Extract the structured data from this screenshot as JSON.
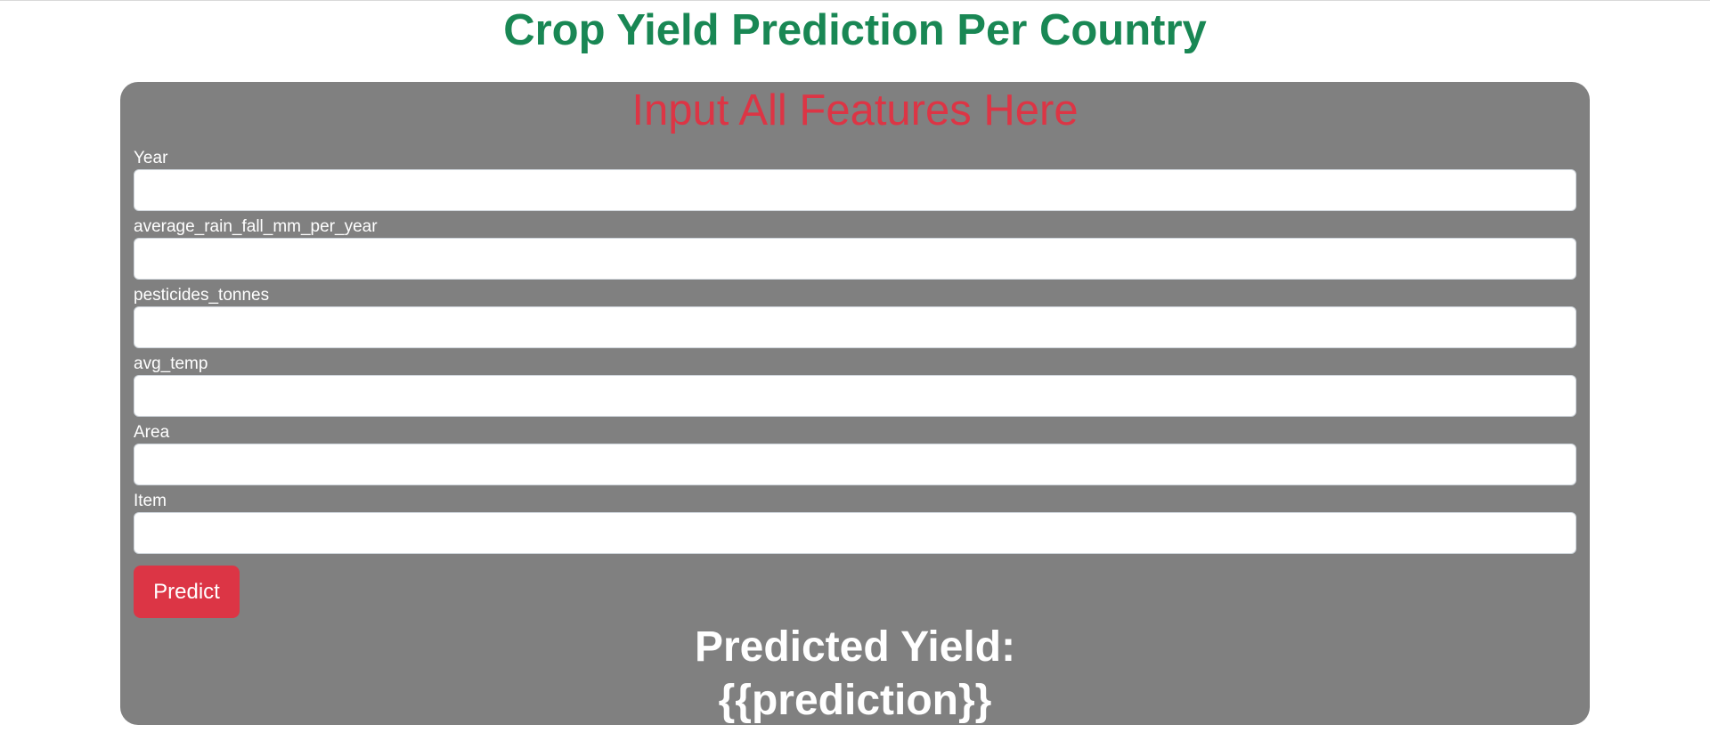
{
  "header": {
    "title": "Crop Yield Prediction Per Country"
  },
  "form": {
    "heading": "Input All Features Here",
    "fields": [
      {
        "label": "Year",
        "value": "",
        "placeholder": ""
      },
      {
        "label": "average_rain_fall_mm_per_year",
        "value": "",
        "placeholder": ""
      },
      {
        "label": "pesticides_tonnes",
        "value": "",
        "placeholder": ""
      },
      {
        "label": "avg_temp",
        "value": "",
        "placeholder": ""
      },
      {
        "label": "Area",
        "value": "",
        "placeholder": ""
      },
      {
        "label": "Item",
        "value": "",
        "placeholder": ""
      }
    ],
    "predict_label": "Predict"
  },
  "result": {
    "label": "Predicted Yield:",
    "value": "{{prediction}}"
  },
  "colors": {
    "title": "#198754",
    "heading": "#dc3545",
    "card_background": "#808080",
    "button": "#dc3545"
  }
}
